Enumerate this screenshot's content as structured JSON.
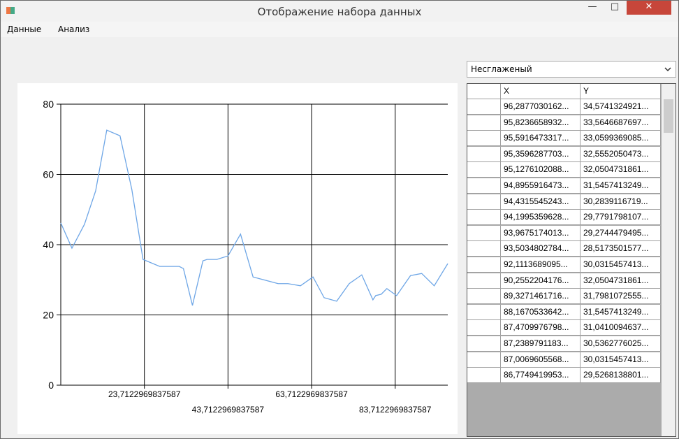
{
  "window": {
    "title": "Отображение набора данных"
  },
  "menu": [
    "Данные",
    "Анализ"
  ],
  "dropdown": {
    "selected": "Несглаженый"
  },
  "chart_data": {
    "type": "line",
    "xlim": [
      3.71,
      96.29
    ],
    "ylim": [
      0,
      80
    ],
    "yticks": [
      0,
      20,
      40,
      60,
      80
    ],
    "xticks": [
      {
        "value": 23.7122969837587,
        "label": "23,7122969837587"
      },
      {
        "value": 43.7122969837587,
        "label": "43,7122969837587"
      },
      {
        "value": 63.7122969837587,
        "label": "63,7122969837587"
      },
      {
        "value": 83.7122969837587,
        "label": "83,7122969837587"
      }
    ],
    "grid": true,
    "series": [
      {
        "color": "#6ea6e6",
        "x": [
          3.71,
          6.38,
          9.38,
          12.05,
          14.71,
          17.88,
          20.71,
          23.38,
          27.38,
          29.38,
          32.05,
          33.05,
          35.21,
          37.71,
          38.71,
          41.05,
          43.71,
          46.71,
          49.71,
          55.71,
          58.05,
          61.05,
          64.05,
          66.71,
          69.71,
          72.71,
          75.71,
          78.38,
          79.05,
          80.38,
          81.71,
          84.05,
          87.38,
          90.05,
          93.05,
          96.29
        ],
        "values": [
          46.2,
          39,
          45.8,
          55.3,
          72.6,
          71,
          55.7,
          35.8,
          33.8,
          33.8,
          33.8,
          33.2,
          22.7,
          35.4,
          35.8,
          35.8,
          36.8,
          43,
          30.8,
          28.9,
          28.9,
          28.3,
          30.8,
          24.9,
          23.9,
          28.9,
          31.4,
          24.3,
          25.5,
          25.9,
          27.5,
          25.5,
          31.2,
          31.8,
          28.3,
          34.6
        ]
      }
    ]
  },
  "table": {
    "columns": [
      "X",
      "Y"
    ],
    "rows": [
      [
        "96,2877030162...",
        "34,5741324921..."
      ],
      [
        "95,8236658932...",
        "33,5646687697..."
      ],
      [
        "95,5916473317...",
        "33,0599369085..."
      ],
      [
        "95,3596287703...",
        "32,5552050473..."
      ],
      [
        "95,1276102088...",
        "32,0504731861..."
      ],
      [
        "94,8955916473...",
        "31,5457413249..."
      ],
      [
        "94,4315545243...",
        "30,2839116719..."
      ],
      [
        "94,1995359628...",
        "29,7791798107..."
      ],
      [
        "93,9675174013...",
        "29,2744479495..."
      ],
      [
        "93,5034802784...",
        "28,5173501577..."
      ],
      [
        "92,1113689095...",
        "30,0315457413..."
      ],
      [
        "90,2552204176...",
        "32,0504731861..."
      ],
      [
        "89,3271461716...",
        "31,7981072555..."
      ],
      [
        "88,1670533642...",
        "31,5457413249..."
      ],
      [
        "87,4709976798...",
        "31,0410094637..."
      ],
      [
        "87,2389791183...",
        "30,5362776025..."
      ],
      [
        "87,0069605568...",
        "30,0315457413..."
      ],
      [
        "86,7749419953...",
        "29,5268138801..."
      ]
    ]
  }
}
